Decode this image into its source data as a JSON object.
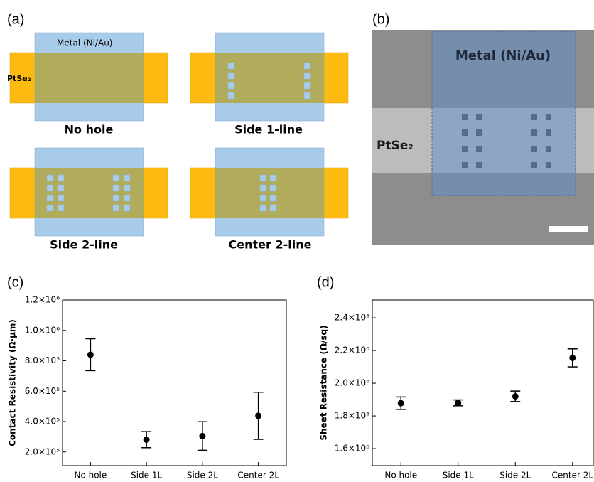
{
  "panel_a": {
    "label": "(a)",
    "metal": "Metal (Ni/Au)",
    "ptse2": "PtSe₂",
    "diagrams": [
      "No hole",
      "Side 1-line",
      "Side 2-line",
      "Center 2-line"
    ]
  },
  "panel_b": {
    "label": "(b)",
    "metal": "Metal (Ni/Au)",
    "ptse2": "PtSe₂"
  },
  "chart_data": [
    {
      "type": "scatter",
      "label": "(c)",
      "ylabel": "Contact Resistivity (Ω·μm)",
      "categories": [
        "No hole",
        "Side 1L",
        "Side 2L",
        "Center 2L"
      ],
      "series": [
        {
          "color": "#000000",
          "values": [
            840000,
            281000,
            305000,
            438000
          ],
          "errors": [
            105000,
            53000,
            94000,
            155000
          ]
        }
      ],
      "ylim": [
        110000,
        1200000
      ],
      "yticks": [
        {
          "value": 200000,
          "label": "2.0×10⁵"
        },
        {
          "value": 400000,
          "label": "4.0×10⁵"
        },
        {
          "value": 600000,
          "label": "6.0×10⁵"
        },
        {
          "value": 800000,
          "label": "8.0×10⁵"
        },
        {
          "value": 1000000,
          "label": "1.0×10⁶"
        },
        {
          "value": 1200000,
          "label": "1.2×10⁶"
        }
      ]
    },
    {
      "type": "scatter",
      "label": "(d)",
      "ylabel": "Sheet Resistance (Ω/sq)",
      "categories": [
        "No hole",
        "Side 1L",
        "Side 2L",
        "Center 2L"
      ],
      "series": [
        {
          "color": "#000000",
          "values": [
            1878000,
            1880000,
            1920000,
            2155000
          ],
          "errors": [
            38000,
            18000,
            32000,
            55000
          ]
        }
      ],
      "ylim": [
        1496000,
        2509000
      ],
      "yticks": [
        {
          "value": 1600000,
          "label": "1.6×10⁶"
        },
        {
          "value": 1800000,
          "label": "1.8×10⁶"
        },
        {
          "value": 2000000,
          "label": "2.0×10⁶"
        },
        {
          "value": 2200000,
          "label": "2.2×10⁶"
        },
        {
          "value": 2400000,
          "label": "2.4×10⁶"
        }
      ]
    }
  ]
}
